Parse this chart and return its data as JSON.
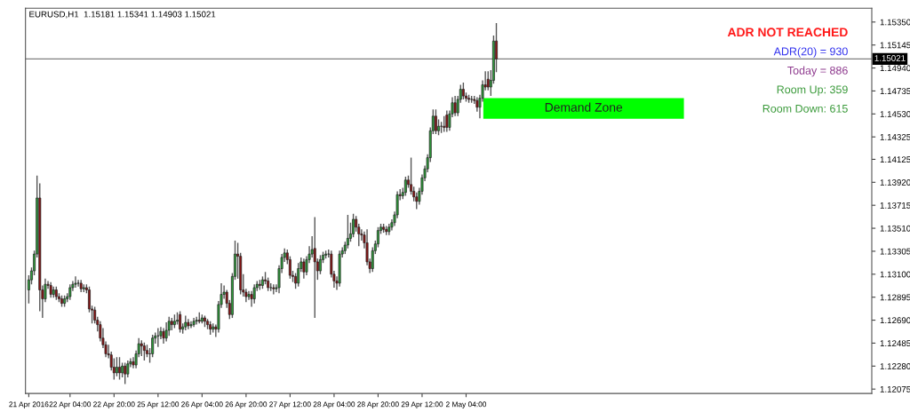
{
  "chart_data": {
    "type": "candlestick",
    "title": "EURUSD,H1  1.15181 1.15341 1.14903 1.15021",
    "annotations": [
      "ADR NOT REACHED",
      "ADR(20) = 930",
      "Today = 886",
      "Room Up: 359",
      "Room Down: 615"
    ],
    "categories": [
      "21 Apr 2016",
      null,
      null,
      null,
      null,
      null,
      null,
      null,
      null,
      null,
      null,
      null,
      null,
      null,
      null,
      "22 Apr 04:00",
      null,
      null,
      null,
      null,
      null,
      null,
      null,
      null,
      null,
      null,
      null,
      null,
      null,
      null,
      null,
      "22 Apr 20:00",
      null,
      null,
      null,
      null,
      null,
      null,
      null,
      null,
      null,
      null,
      null,
      null,
      null,
      null,
      null,
      "25 Apr 12:00",
      null,
      null,
      null,
      null,
      null,
      null,
      null,
      null,
      null,
      null,
      null,
      null,
      null,
      null,
      null,
      "26 Apr 04:00",
      null,
      null,
      null,
      null,
      null,
      null,
      null,
      null,
      null,
      null,
      null,
      null,
      null,
      null,
      null,
      "26 Apr 20:00",
      null,
      null,
      null,
      null,
      null,
      null,
      null,
      null,
      null,
      null,
      null,
      null,
      null,
      null,
      null,
      "27 Apr 12:00",
      null,
      null,
      null,
      null,
      null,
      null,
      null,
      null,
      null,
      null,
      null,
      null,
      null,
      null,
      null,
      "28 Apr 04:00",
      null,
      null,
      null,
      null,
      null,
      null,
      null,
      null,
      null,
      null,
      null,
      null,
      null,
      null,
      null,
      "28 Apr 20:00",
      null,
      null,
      null,
      null,
      null,
      null,
      null,
      null,
      null,
      null,
      null,
      null,
      null,
      null,
      null,
      "29 Apr 12:00",
      null,
      null,
      null,
      null,
      null,
      null,
      null,
      null,
      null,
      null,
      null,
      null,
      null,
      null,
      null,
      "2 May 04:00",
      null,
      null,
      null,
      null,
      null,
      null,
      null,
      null,
      null,
      null,
      null,
      null,
      null,
      null,
      null,
      null,
      null,
      null,
      null,
      null,
      null,
      null,
      null,
      null,
      null,
      null,
      null,
      null,
      null,
      null,
      null,
      null,
      null,
      null,
      null,
      null,
      null,
      null,
      null,
      null,
      null,
      null,
      null,
      null,
      null,
      null,
      null,
      null,
      null,
      null,
      null,
      null,
      null,
      null,
      null,
      null,
      null,
      null,
      null,
      null,
      null,
      null,
      null,
      null,
      null,
      null,
      null,
      null,
      null,
      null,
      null,
      null,
      null,
      null,
      null,
      null,
      null,
      null,
      null,
      null,
      null,
      null,
      null,
      null,
      null,
      null,
      null,
      null,
      null,
      null,
      null,
      null,
      null,
      null,
      null,
      null,
      null,
      null,
      null,
      null,
      null,
      null,
      null,
      null,
      null,
      null,
      null,
      null,
      null,
      null,
      null,
      null,
      null,
      null,
      null,
      null,
      null,
      null,
      null,
      null,
      null,
      null,
      null,
      null,
      null,
      null,
      null,
      null,
      null,
      null,
      null,
      null,
      null,
      null,
      null,
      null,
      null,
      null,
      null,
      null,
      null,
      null,
      null,
      null,
      null,
      null,
      null
    ],
    "ohlc": [
      [
        1.1296,
        1.1309,
        1.1284,
        1.1305
      ],
      [
        1.1305,
        1.1316,
        1.1301,
        1.1313
      ],
      [
        1.1313,
        1.1331,
        1.1309,
        1.1328
      ],
      [
        1.1328,
        1.1398,
        1.1325,
        1.1378
      ],
      [
        1.1378,
        1.1391,
        1.1277,
        1.1296
      ],
      [
        1.1296,
        1.13,
        1.1271,
        1.1288
      ],
      [
        1.1288,
        1.1306,
        1.1285,
        1.1301
      ],
      [
        1.1301,
        1.1304,
        1.1297,
        1.13
      ],
      [
        1.13,
        1.1303,
        1.1289,
        1.1292
      ],
      [
        1.1292,
        1.1299,
        1.1289,
        1.1296
      ],
      [
        1.1296,
        1.1299,
        1.1287,
        1.129
      ],
      [
        1.129,
        1.1293,
        1.1285,
        1.1288
      ],
      [
        1.1288,
        1.1291,
        1.1281,
        1.1284
      ],
      [
        1.1284,
        1.1291,
        1.1281,
        1.1288
      ],
      [
        1.1288,
        1.1293,
        1.1285,
        1.129
      ],
      [
        1.129,
        1.1301,
        1.1287,
        1.1298
      ],
      [
        1.1298,
        1.1304,
        1.1295,
        1.1301
      ],
      [
        1.1301,
        1.1308,
        1.1298,
        1.1302
      ],
      [
        1.1302,
        1.1305,
        1.1299,
        1.1302
      ],
      [
        1.1302,
        1.1305,
        1.1294,
        1.1297
      ],
      [
        1.1297,
        1.1301,
        1.1294,
        1.1298
      ],
      [
        1.1298,
        1.1301,
        1.1293,
        1.1296
      ],
      [
        1.1296,
        1.1299,
        1.1276,
        1.1279
      ],
      [
        1.1279,
        1.1282,
        1.1266,
        1.1278
      ],
      [
        1.1278,
        1.1281,
        1.1266,
        1.1269
      ],
      [
        1.1269,
        1.1272,
        1.1259,
        1.1265
      ],
      [
        1.1265,
        1.1268,
        1.125,
        1.1253
      ],
      [
        1.1253,
        1.1262,
        1.1244,
        1.1247
      ],
      [
        1.1247,
        1.125,
        1.1236,
        1.1239
      ],
      [
        1.1239,
        1.1247,
        1.1235,
        1.1238
      ],
      [
        1.1238,
        1.1241,
        1.1224,
        1.1227
      ],
      [
        1.1227,
        1.1235,
        1.1216,
        1.1222
      ],
      [
        1.1222,
        1.1236,
        1.1219,
        1.1227
      ],
      [
        1.1227,
        1.1236,
        1.1216,
        1.1222
      ],
      [
        1.1222,
        1.1231,
        1.1218,
        1.1228
      ],
      [
        1.1228,
        1.1231,
        1.1212,
        1.1221
      ],
      [
        1.1221,
        1.1233,
        1.1218,
        1.123
      ],
      [
        1.123,
        1.1235,
        1.1227,
        1.1232
      ],
      [
        1.1232,
        1.1236,
        1.1226,
        1.1229
      ],
      [
        1.1229,
        1.1242,
        1.1226,
        1.1239
      ],
      [
        1.1239,
        1.1253,
        1.1236,
        1.1248
      ],
      [
        1.1248,
        1.1251,
        1.1237,
        1.1246
      ],
      [
        1.1246,
        1.1249,
        1.1233,
        1.1242
      ],
      [
        1.1242,
        1.1247,
        1.1236,
        1.1239
      ],
      [
        1.1239,
        1.1244,
        1.1231,
        1.1239
      ],
      [
        1.1239,
        1.1256,
        1.1236,
        1.1253
      ],
      [
        1.1253,
        1.1258,
        1.1248,
        1.1255
      ],
      [
        1.1255,
        1.1262,
        1.1245,
        1.1255
      ],
      [
        1.1255,
        1.1263,
        1.1252,
        1.1259
      ],
      [
        1.1259,
        1.1262,
        1.1248,
        1.1253
      ],
      [
        1.1253,
        1.1267,
        1.125,
        1.126
      ],
      [
        1.126,
        1.1272,
        1.1255,
        1.1268
      ],
      [
        1.1268,
        1.1271,
        1.126,
        1.1265
      ],
      [
        1.1265,
        1.1274,
        1.1262,
        1.1268
      ],
      [
        1.1268,
        1.1276,
        1.1265,
        1.1269
      ],
      [
        1.1274,
        1.1277,
        1.1258,
        1.1261
      ],
      [
        1.1261,
        1.1266,
        1.1257,
        1.1263
      ],
      [
        1.1263,
        1.1273,
        1.126,
        1.1267
      ],
      [
        1.1267,
        1.127,
        1.1261,
        1.1264
      ],
      [
        1.1264,
        1.1268,
        1.1262,
        1.1265
      ],
      [
        1.1265,
        1.1271,
        1.1263,
        1.1268
      ],
      [
        1.1268,
        1.1272,
        1.1265,
        1.1269
      ],
      [
        1.1269,
        1.1276,
        1.1266,
        1.1268
      ],
      [
        1.1268,
        1.1274,
        1.1266,
        1.1271
      ],
      [
        1.1271,
        1.1273,
        1.1263,
        1.1268
      ],
      [
        1.1268,
        1.127,
        1.1261,
        1.1265
      ],
      [
        1.1265,
        1.1268,
        1.1256,
        1.1261
      ],
      [
        1.1261,
        1.1266,
        1.1258,
        1.1263
      ],
      [
        1.1263,
        1.1265,
        1.1254,
        1.1261
      ],
      [
        1.1261,
        1.1286,
        1.1258,
        1.1283
      ],
      [
        1.1283,
        1.1302,
        1.128,
        1.1292
      ],
      [
        1.1292,
        1.13,
        1.1288,
        1.1294
      ],
      [
        1.1294,
        1.1296,
        1.128,
        1.1284
      ],
      [
        1.1284,
        1.1287,
        1.127,
        1.1274
      ],
      [
        1.1274,
        1.1311,
        1.1271,
        1.1308
      ],
      [
        1.1308,
        1.134,
        1.1305,
        1.1328
      ],
      [
        1.1328,
        1.1338,
        1.1306,
        1.1326
      ],
      [
        1.1326,
        1.1329,
        1.1292,
        1.1296
      ],
      [
        1.1296,
        1.131,
        1.129,
        1.1294
      ],
      [
        1.1294,
        1.1297,
        1.1285,
        1.129
      ],
      [
        1.129,
        1.1295,
        1.1287,
        1.1292
      ],
      [
        1.1292,
        1.1295,
        1.1281,
        1.1288
      ],
      [
        1.1288,
        1.1301,
        1.1284,
        1.1298
      ],
      [
        1.1298,
        1.1304,
        1.1295,
        1.1301
      ],
      [
        1.1301,
        1.1305,
        1.1296,
        1.13
      ],
      [
        1.13,
        1.1308,
        1.1297,
        1.1305
      ],
      [
        1.1305,
        1.1312,
        1.1301,
        1.1304
      ],
      [
        1.1304,
        1.1307,
        1.1295,
        1.1298
      ],
      [
        1.1298,
        1.1302,
        1.1295,
        1.1298
      ],
      [
        1.1298,
        1.1301,
        1.1292,
        1.1297
      ],
      [
        1.1297,
        1.1301,
        1.1294,
        1.1298
      ],
      [
        1.1298,
        1.1318,
        1.1293,
        1.1315
      ],
      [
        1.1315,
        1.1328,
        1.1311,
        1.1325
      ],
      [
        1.1325,
        1.1333,
        1.1321,
        1.1329
      ],
      [
        1.1329,
        1.1332,
        1.1319,
        1.1323
      ],
      [
        1.1323,
        1.1326,
        1.1306,
        1.1309
      ],
      [
        1.1309,
        1.1313,
        1.1303,
        1.1308
      ],
      [
        1.1308,
        1.1311,
        1.1297,
        1.1302
      ],
      [
        1.1302,
        1.132,
        1.1299,
        1.1315
      ],
      [
        1.1315,
        1.1325,
        1.1312,
        1.1321
      ],
      [
        1.1321,
        1.1324,
        1.1306,
        1.1312
      ],
      [
        1.1312,
        1.1326,
        1.1309,
        1.1323
      ],
      [
        1.1323,
        1.1335,
        1.132,
        1.1328
      ],
      [
        1.1328,
        1.1344,
        1.1325,
        1.1332
      ],
      [
        1.1333,
        1.1361,
        1.1271,
        1.1321
      ],
      [
        1.1321,
        1.1324,
        1.1305,
        1.1313
      ],
      [
        1.1313,
        1.1327,
        1.131,
        1.1323
      ],
      [
        1.1323,
        1.133,
        1.132,
        1.1327
      ],
      [
        1.1327,
        1.1331,
        1.1324,
        1.1328
      ],
      [
        1.1328,
        1.1332,
        1.1325,
        1.1328
      ],
      [
        1.1328,
        1.1331,
        1.1307,
        1.131
      ],
      [
        1.131,
        1.1313,
        1.1298,
        1.1304
      ],
      [
        1.1304,
        1.1308,
        1.1296,
        1.1302
      ],
      [
        1.1302,
        1.1331,
        1.1299,
        1.1328
      ],
      [
        1.1328,
        1.1334,
        1.1325,
        1.1331
      ],
      [
        1.1331,
        1.1339,
        1.1328,
        1.1336
      ],
      [
        1.1336,
        1.1363,
        1.1333,
        1.1342
      ],
      [
        1.1342,
        1.1356,
        1.1339,
        1.1346
      ],
      [
        1.1346,
        1.1364,
        1.1343,
        1.1359
      ],
      [
        1.1359,
        1.1362,
        1.1348,
        1.1352
      ],
      [
        1.1352,
        1.1355,
        1.1335,
        1.1346
      ],
      [
        1.1346,
        1.135,
        1.134,
        1.1345
      ],
      [
        1.1345,
        1.1348,
        1.1333,
        1.1338
      ],
      [
        1.1338,
        1.135,
        1.1318,
        1.1321
      ],
      [
        1.1321,
        1.1324,
        1.1311,
        1.1315
      ],
      [
        1.1315,
        1.1334,
        1.1312,
        1.1331
      ],
      [
        1.1331,
        1.134,
        1.1328,
        1.1337
      ],
      [
        1.1337,
        1.1352,
        1.1334,
        1.1349
      ],
      [
        1.1349,
        1.1355,
        1.1346,
        1.1352
      ],
      [
        1.1352,
        1.1355,
        1.1347,
        1.135
      ],
      [
        1.135,
        1.1353,
        1.1345,
        1.1348
      ],
      [
        1.1348,
        1.1355,
        1.1345,
        1.1352
      ],
      [
        1.1352,
        1.1359,
        1.1349,
        1.1356
      ],
      [
        1.1356,
        1.1366,
        1.1353,
        1.1363
      ],
      [
        1.1363,
        1.1384,
        1.136,
        1.1381
      ],
      [
        1.1381,
        1.1386,
        1.1376,
        1.138
      ],
      [
        1.138,
        1.1387,
        1.1377,
        1.1383
      ],
      [
        1.1383,
        1.1397,
        1.138,
        1.1394
      ],
      [
        1.1394,
        1.1398,
        1.1387,
        1.139
      ],
      [
        1.139,
        1.1414,
        1.1381,
        1.1384
      ],
      [
        1.1384,
        1.1388,
        1.1375,
        1.1379
      ],
      [
        1.1379,
        1.1383,
        1.1368,
        1.1375
      ],
      [
        1.1375,
        1.1387,
        1.1372,
        1.1384
      ],
      [
        1.1384,
        1.1399,
        1.1381,
        1.1396
      ],
      [
        1.1396,
        1.1407,
        1.1393,
        1.1404
      ],
      [
        1.1404,
        1.1417,
        1.1401,
        1.1414
      ],
      [
        1.1414,
        1.1441,
        1.141,
        1.1438
      ],
      [
        1.1438,
        1.1457,
        1.1435,
        1.1451
      ],
      [
        1.1451,
        1.1457,
        1.1435,
        1.1438
      ],
      [
        1.1438,
        1.1448,
        1.1434,
        1.1442
      ],
      [
        1.1442,
        1.1446,
        1.1436,
        1.1442
      ],
      [
        1.1442,
        1.1451,
        1.1437,
        1.1441
      ],
      [
        1.1452,
        1.1456,
        1.1437,
        1.1441
      ],
      [
        1.1441,
        1.1456,
        1.1438,
        1.1453
      ],
      [
        1.1453,
        1.1468,
        1.145,
        1.1463
      ],
      [
        1.1463,
        1.1469,
        1.1451,
        1.1454
      ],
      [
        1.1454,
        1.1469,
        1.1451,
        1.1466
      ],
      [
        1.1466,
        1.1479,
        1.1463,
        1.1475
      ],
      [
        1.1475,
        1.1481,
        1.1466,
        1.1469
      ],
      [
        1.1469,
        1.1472,
        1.1464,
        1.1467
      ],
      [
        1.1467,
        1.147,
        1.1463,
        1.1466
      ],
      [
        1.1466,
        1.1469,
        1.1463,
        1.1466
      ],
      [
        1.1466,
        1.1469,
        1.1462,
        1.1465
      ],
      [
        1.1465,
        1.1468,
        1.1455,
        1.1459
      ],
      [
        1.1459,
        1.147,
        1.1449,
        1.1467
      ],
      [
        1.1467,
        1.1483,
        1.1464,
        1.1479
      ],
      [
        1.1479,
        1.1491,
        1.1474,
        1.1477
      ],
      [
        1.1484,
        1.1491,
        1.1474,
        1.1477
      ],
      [
        1.1477,
        1.1492,
        1.1469,
        1.1483
      ],
      [
        1.1483,
        1.1523,
        1.148,
        1.1518
      ],
      [
        1.15181,
        1.15341,
        1.14903,
        1.15021
      ],
      null,
      null,
      null,
      null,
      null,
      null,
      null,
      null,
      null,
      null,
      null,
      null,
      null,
      null,
      null,
      null,
      null,
      null,
      null,
      null,
      null,
      null,
      null,
      null,
      null,
      null,
      null,
      null,
      null,
      null,
      null,
      null,
      null,
      null,
      null,
      null,
      null,
      null,
      null,
      null,
      null,
      null,
      null,
      null,
      null,
      null,
      null,
      null,
      null,
      null,
      null,
      null,
      null,
      null,
      null,
      null,
      null,
      null,
      null,
      null,
      null,
      null,
      null,
      null,
      null,
      null,
      null,
      null,
      null,
      null,
      null,
      null,
      null,
      null,
      null,
      null,
      null,
      null,
      null,
      null,
      null,
      null,
      null,
      null,
      null,
      null,
      null,
      null,
      null,
      null,
      null,
      null,
      null,
      null,
      null,
      null,
      null,
      null,
      null,
      null,
      null,
      null,
      null,
      null,
      null,
      null,
      null,
      null,
      null,
      null,
      null,
      null,
      null,
      null,
      null,
      null,
      null,
      null,
      null,
      null,
      null,
      null,
      null,
      null,
      null,
      null,
      null,
      null,
      null,
      null,
      null,
      null,
      null,
      null,
      null,
      null
    ],
    "ylim": [
      1.12036,
      1.15473
    ],
    "yticks": [
      {
        "value": 1.1535,
        "label": "1.15350"
      },
      {
        "value": 1.15145,
        "label": "1.15145"
      },
      {
        "value": 1.1494,
        "label": "1.14940"
      },
      {
        "value": 1.14735,
        "label": "1.14735"
      },
      {
        "value": 1.1453,
        "label": "1.14530"
      },
      {
        "value": 1.14325,
        "label": "1.14325"
      },
      {
        "value": 1.14125,
        "label": "1.14125"
      },
      {
        "value": 1.1392,
        "label": "1.13920"
      },
      {
        "value": 1.13715,
        "label": "1.13715"
      },
      {
        "value": 1.1351,
        "label": "1.13510"
      },
      {
        "value": 1.13305,
        "label": "1.13305"
      },
      {
        "value": 1.131,
        "label": "1.13100"
      },
      {
        "value": 1.12895,
        "label": "1.12895"
      },
      {
        "value": 1.1269,
        "label": "1.12690"
      },
      {
        "value": 1.12485,
        "label": "1.12485"
      },
      {
        "value": 1.1228,
        "label": "1.12280"
      },
      {
        "value": 1.12075,
        "label": "1.12075"
      }
    ],
    "ref_lines": [
      {
        "axis": "y",
        "value": 1.15021,
        "label": "1.15021",
        "color": "#808080"
      }
    ],
    "bands": [
      {
        "axis": "y",
        "from": 1.14487,
        "to": 1.14672,
        "label": "Demand Zone",
        "color": "#00ff00"
      }
    ]
  }
}
